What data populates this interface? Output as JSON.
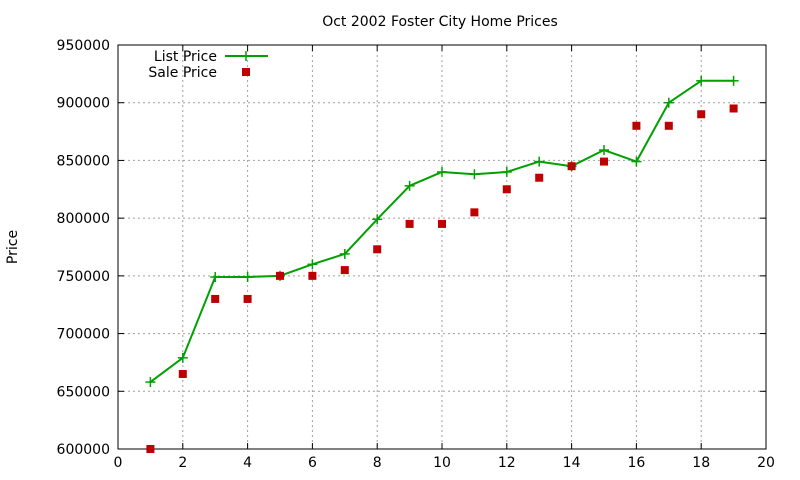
{
  "chart_data": {
    "type": "line",
    "title": "Oct 2002 Foster City Home Prices",
    "xlabel": "",
    "ylabel": "Price",
    "xlim": [
      0,
      20
    ],
    "ylim": [
      600000,
      950000
    ],
    "xticks": [
      0,
      2,
      4,
      6,
      8,
      10,
      12,
      14,
      16,
      18,
      20
    ],
    "yticks": [
      600000,
      650000,
      700000,
      750000,
      800000,
      850000,
      900000,
      950000
    ],
    "grid": true,
    "legend_position": "top-left",
    "series": [
      {
        "name": "List Price",
        "style": "line-with-plus-markers",
        "color": "#00a000",
        "x": [
          1,
          2,
          3,
          4,
          5,
          6,
          7,
          8,
          9,
          10,
          11,
          12,
          13,
          14,
          15,
          16,
          17,
          18,
          19
        ],
        "y": [
          658000,
          679000,
          749000,
          749000,
          750000,
          760000,
          769000,
          799000,
          828000,
          840000,
          838000,
          840000,
          849000,
          845000,
          859000,
          849000,
          900000,
          919000,
          919000
        ]
      },
      {
        "name": "Sale Price",
        "style": "square-markers",
        "color": "#c00000",
        "x": [
          1,
          2,
          3,
          4,
          5,
          6,
          7,
          8,
          9,
          10,
          11,
          12,
          13,
          14,
          15,
          16,
          17,
          18,
          19
        ],
        "y": [
          600000,
          665000,
          730000,
          730000,
          750000,
          750000,
          755000,
          773000,
          795000,
          795000,
          805000,
          825000,
          835000,
          845000,
          849000,
          880000,
          880000,
          890000,
          895000
        ]
      }
    ]
  }
}
